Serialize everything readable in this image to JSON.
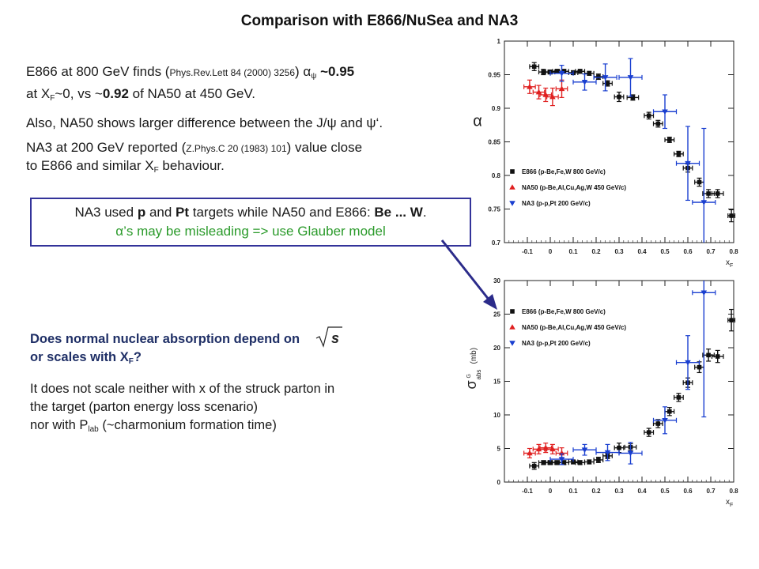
{
  "slide": {
    "title": "Comparison with E866/NuSea and NA3"
  },
  "bullets": {
    "b1_pre": "E866 at 800 GeV finds (",
    "b1_ref": "Phys.Rev.Lett 84 (2000) 3256",
    "b1_mid": ") ",
    "b1_alpha": "α",
    "b1_sub": "ψ",
    "b1_val": " ~0.95",
    "b1_l2_pre": "at X",
    "b1_l2_sub": "F",
    "b1_l2_mid": "~0, vs ~",
    "b1_l2_val": "0.92",
    "b1_l2_post": " of NA50 at 450 GeV.",
    "b2": "Also, NA50 shows larger difference between the J/ψ and ψ‘.",
    "b3_pre": "NA3 at 200 GeV reported (",
    "b3_ref": "Z.Phys.C 20 (1983) 101",
    "b3_post": ") value close",
    "b3_l2_pre": "to E866 and similar X",
    "b3_l2_sub": "F",
    "b3_l2_post": " behaviour."
  },
  "box_note": {
    "l1_pre": "NA3 used ",
    "l1_p": "p",
    "l1_and": " and ",
    "l1_pt": "Pt",
    "l1_mid": " targets while NA50 and E866: ",
    "l1_be": "Be ... W",
    "l1_end": ".",
    "l2_alpha": "α",
    "l2_rest": "’s may be misleading => use Glauber model"
  },
  "question": {
    "q_l1": "Does normal nuclear absorption depend on",
    "q_l2_pre": "or scales with X",
    "q_l2_sub": "F",
    "q_l2_post": "?",
    "sqrt_label": "s",
    "a_l1": "It does not scale neither with x of the struck parton in",
    "a_l2": "the target (parton energy loss scenario)",
    "a_l3_pre": "nor with P",
    "a_l3_sub": "lab",
    "a_l3_post": " (~charmonium formation time)"
  },
  "colors": {
    "e866": "#111111",
    "na50": "#e02020",
    "na3": "#1a3fd0",
    "title_blue": "#1f2f66",
    "box_border": "#33339a",
    "arrow": "#2b2b8a"
  },
  "chart_data": [
    {
      "type": "scatter",
      "ylabel": "α",
      "xlabel": "x",
      "xlabel_sub": "F",
      "xlim": [
        -0.2,
        0.8
      ],
      "ylim": [
        0.7,
        1.0
      ],
      "xticks": [
        "-0.1",
        "0",
        "0.1",
        "0.2",
        "0.3",
        "0.4",
        "0.5",
        "0.6",
        "0.7",
        "0.8"
      ],
      "xtick_values": [
        -0.1,
        0,
        0.1,
        0.2,
        0.3,
        0.4,
        0.5,
        0.6,
        0.7,
        0.8
      ],
      "yticks": [
        "0.7",
        "0.75",
        "0.8",
        "0.85",
        "0.9",
        "0.95",
        "1"
      ],
      "ytick_values": [
        0.7,
        0.75,
        0.8,
        0.85,
        0.9,
        0.95,
        1.0
      ],
      "legend_position": "bottom-left",
      "series": [
        {
          "name": "E866 (p-Be,Fe,W 800 GeV/c)",
          "color": "#111111",
          "marker": "square",
          "points": [
            {
              "x": -0.07,
              "y": 0.962,
              "ex": 0.02,
              "ey": 0.006
            },
            {
              "x": -0.03,
              "y": 0.954,
              "ex": 0.02,
              "ey": 0.004
            },
            {
              "x": 0.0,
              "y": 0.954,
              "ex": 0.02,
              "ey": 0.003
            },
            {
              "x": 0.03,
              "y": 0.955,
              "ex": 0.02,
              "ey": 0.003
            },
            {
              "x": 0.06,
              "y": 0.955,
              "ex": 0.02,
              "ey": 0.003
            },
            {
              "x": 0.1,
              "y": 0.953,
              "ex": 0.02,
              "ey": 0.003
            },
            {
              "x": 0.13,
              "y": 0.955,
              "ex": 0.02,
              "ey": 0.003
            },
            {
              "x": 0.17,
              "y": 0.952,
              "ex": 0.02,
              "ey": 0.003
            },
            {
              "x": 0.21,
              "y": 0.947,
              "ex": 0.02,
              "ey": 0.004
            },
            {
              "x": 0.25,
              "y": 0.937,
              "ex": 0.02,
              "ey": 0.004
            },
            {
              "x": 0.3,
              "y": 0.917,
              "ex": 0.02,
              "ey": 0.007
            },
            {
              "x": 0.36,
              "y": 0.916,
              "ex": 0.025,
              "ey": 0.004
            },
            {
              "x": 0.43,
              "y": 0.889,
              "ex": 0.02,
              "ey": 0.005
            },
            {
              "x": 0.47,
              "y": 0.877,
              "ex": 0.02,
              "ey": 0.005
            },
            {
              "x": 0.52,
              "y": 0.853,
              "ex": 0.02,
              "ey": 0.004
            },
            {
              "x": 0.56,
              "y": 0.832,
              "ex": 0.02,
              "ey": 0.004
            },
            {
              "x": 0.6,
              "y": 0.811,
              "ex": 0.02,
              "ey": 0.006
            },
            {
              "x": 0.65,
              "y": 0.79,
              "ex": 0.02,
              "ey": 0.006
            },
            {
              "x": 0.69,
              "y": 0.773,
              "ex": 0.025,
              "ey": 0.006
            },
            {
              "x": 0.73,
              "y": 0.773,
              "ex": 0.025,
              "ey": 0.006
            },
            {
              "x": 0.79,
              "y": 0.74,
              "ex": 0.015,
              "ey": 0.009
            }
          ]
        },
        {
          "name": "NA50 (p-Be,Al,Cu,Ag,W 450 GeV/c)",
          "color": "#e02020",
          "marker": "triangle-up",
          "points": [
            {
              "x": -0.09,
              "y": 0.932,
              "ex": 0.025,
              "ey": 0.01
            },
            {
              "x": -0.05,
              "y": 0.924,
              "ex": 0.025,
              "ey": 0.01
            },
            {
              "x": -0.02,
              "y": 0.92,
              "ex": 0.025,
              "ey": 0.01
            },
            {
              "x": 0.01,
              "y": 0.917,
              "ex": 0.025,
              "ey": 0.013
            },
            {
              "x": 0.05,
              "y": 0.929,
              "ex": 0.025,
              "ey": 0.013
            }
          ]
        },
        {
          "name": "NA3   (p-p,Pt  200 GeV/c)",
          "color": "#1a3fd0",
          "marker": "triangle-down",
          "points": [
            {
              "x": 0.05,
              "y": 0.952,
              "ex": 0.05,
              "ey": 0.012
            },
            {
              "x": 0.15,
              "y": 0.939,
              "ex": 0.05,
              "ey": 0.012
            },
            {
              "x": 0.24,
              "y": 0.946,
              "ex": 0.05,
              "ey": 0.02
            },
            {
              "x": 0.35,
              "y": 0.946,
              "ex": 0.05,
              "ey": 0.028
            },
            {
              "x": 0.5,
              "y": 0.895,
              "ex": 0.05,
              "ey": 0.025
            },
            {
              "x": 0.6,
              "y": 0.818,
              "ex": 0.05,
              "ey": 0.055
            },
            {
              "x": 0.67,
              "y": 0.76,
              "ex": 0.05,
              "ey": 0.11
            }
          ]
        }
      ]
    },
    {
      "type": "scatter",
      "ylabel": "σ",
      "ylabel_sub": "abs",
      "ylabel_sup": "G",
      "ylabel_unit": "(mb)",
      "xlabel": "x",
      "xlabel_sub": "F",
      "xlim": [
        -0.2,
        0.8
      ],
      "ylim": [
        0,
        30
      ],
      "xticks": [
        "-0.1",
        "0",
        "0.1",
        "0.2",
        "0.3",
        "0.4",
        "0.5",
        "0.6",
        "0.7",
        "0.8"
      ],
      "xtick_values": [
        -0.1,
        0,
        0.1,
        0.2,
        0.3,
        0.4,
        0.5,
        0.6,
        0.7,
        0.8
      ],
      "yticks": [
        "0",
        "5",
        "10",
        "15",
        "20",
        "25",
        "30"
      ],
      "ytick_values": [
        0,
        5,
        10,
        15,
        20,
        25,
        30
      ],
      "legend_position": "top-left",
      "series": [
        {
          "name": "E866 (p-Be,Fe,W 800 GeV/c)",
          "color": "#111111",
          "marker": "square",
          "points": [
            {
              "x": -0.07,
              "y": 2.4,
              "ex": 0.02,
              "ey": 0.5
            },
            {
              "x": -0.03,
              "y": 2.9,
              "ex": 0.02,
              "ey": 0.3
            },
            {
              "x": 0.0,
              "y": 2.9,
              "ex": 0.02,
              "ey": 0.3
            },
            {
              "x": 0.03,
              "y": 2.9,
              "ex": 0.02,
              "ey": 0.3
            },
            {
              "x": 0.06,
              "y": 2.9,
              "ex": 0.02,
              "ey": 0.3
            },
            {
              "x": 0.1,
              "y": 3.0,
              "ex": 0.02,
              "ey": 0.3
            },
            {
              "x": 0.13,
              "y": 2.9,
              "ex": 0.02,
              "ey": 0.3
            },
            {
              "x": 0.17,
              "y": 3.0,
              "ex": 0.02,
              "ey": 0.3
            },
            {
              "x": 0.21,
              "y": 3.3,
              "ex": 0.02,
              "ey": 0.4
            },
            {
              "x": 0.25,
              "y": 3.9,
              "ex": 0.02,
              "ey": 0.4
            },
            {
              "x": 0.3,
              "y": 5.1,
              "ex": 0.02,
              "ey": 0.7
            },
            {
              "x": 0.35,
              "y": 5.2,
              "ex": 0.025,
              "ey": 0.5
            },
            {
              "x": 0.43,
              "y": 7.4,
              "ex": 0.02,
              "ey": 0.6
            },
            {
              "x": 0.47,
              "y": 8.7,
              "ex": 0.02,
              "ey": 0.6
            },
            {
              "x": 0.52,
              "y": 10.5,
              "ex": 0.02,
              "ey": 0.6
            },
            {
              "x": 0.56,
              "y": 12.6,
              "ex": 0.02,
              "ey": 0.6
            },
            {
              "x": 0.6,
              "y": 14.8,
              "ex": 0.02,
              "ey": 0.7
            },
            {
              "x": 0.65,
              "y": 17.1,
              "ex": 0.02,
              "ey": 0.8
            },
            {
              "x": 0.69,
              "y": 18.9,
              "ex": 0.025,
              "ey": 0.9
            },
            {
              "x": 0.73,
              "y": 18.7,
              "ex": 0.025,
              "ey": 0.9
            },
            {
              "x": 0.79,
              "y": 24.1,
              "ex": 0.015,
              "ey": 1.6
            }
          ]
        },
        {
          "name": "NA50 (p-Be,Al,Cu,Ag,W 450 GeV/c)",
          "color": "#e02020",
          "marker": "triangle-up",
          "points": [
            {
              "x": -0.09,
              "y": 4.3,
              "ex": 0.025,
              "ey": 0.7
            },
            {
              "x": -0.05,
              "y": 4.9,
              "ex": 0.025,
              "ey": 0.7
            },
            {
              "x": -0.02,
              "y": 5.1,
              "ex": 0.025,
              "ey": 0.7
            },
            {
              "x": 0.01,
              "y": 4.9,
              "ex": 0.025,
              "ey": 0.7
            },
            {
              "x": 0.05,
              "y": 4.3,
              "ex": 0.025,
              "ey": 0.8
            }
          ]
        },
        {
          "name": "NA3   (p-p,Pt  200 GeV/c)",
          "color": "#1a3fd0",
          "marker": "triangle-down",
          "points": [
            {
              "x": 0.05,
              "y": 3.4,
              "ex": 0.05,
              "ey": 0.8
            },
            {
              "x": 0.15,
              "y": 4.8,
              "ex": 0.05,
              "ey": 0.8
            },
            {
              "x": 0.25,
              "y": 4.4,
              "ex": 0.05,
              "ey": 1.2
            },
            {
              "x": 0.35,
              "y": 4.3,
              "ex": 0.05,
              "ey": 1.6
            },
            {
              "x": 0.5,
              "y": 9.2,
              "ex": 0.05,
              "ey": 2.0
            },
            {
              "x": 0.6,
              "y": 17.8,
              "ex": 0.05,
              "ey": 4.0
            },
            {
              "x": 0.67,
              "y": 28.2,
              "ex": 0.05,
              "ey": 18.5
            }
          ]
        }
      ]
    }
  ]
}
